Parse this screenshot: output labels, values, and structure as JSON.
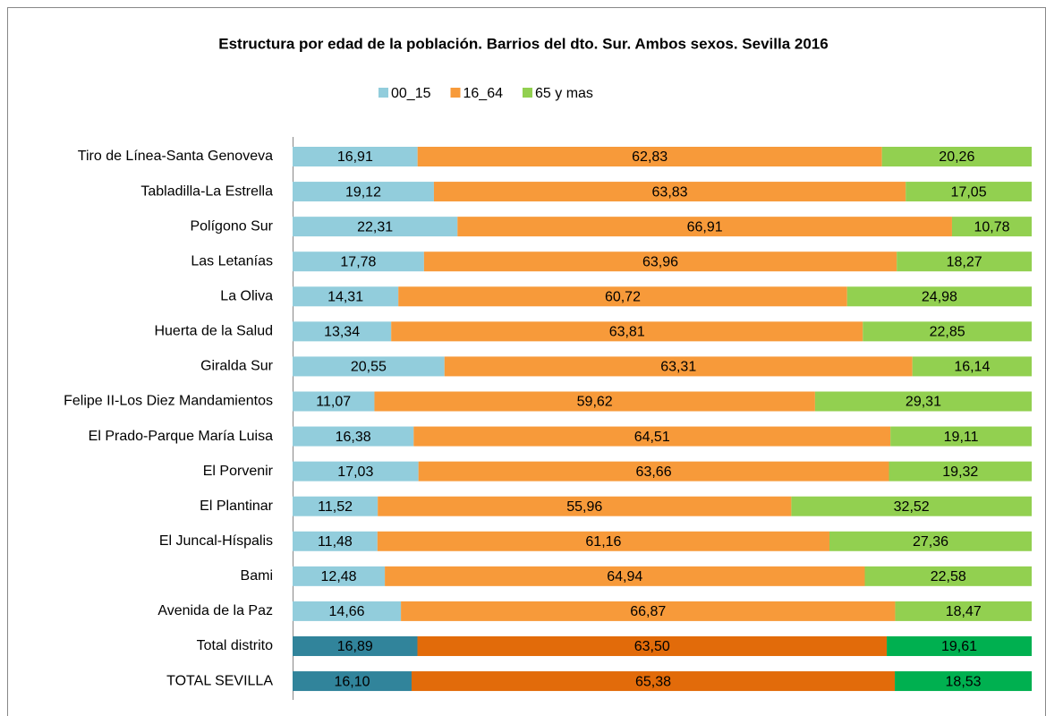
{
  "chart_data": {
    "type": "stacked_barh",
    "title": "Estructura por edad de la población. Barrios del dto. Sur. Ambos sexos. Sevilla 2016",
    "categories": [
      "Tiro de Línea-Santa Genoveva",
      "Tabladilla-La Estrella",
      "Polígono Sur",
      "Las Letanías",
      "La Oliva",
      "Huerta de la Salud",
      "Giralda Sur",
      "Felipe II-Los Diez Mandamientos",
      "El Prado-Parque María Luisa",
      "El Porvenir",
      "El Plantinar",
      "El Juncal-Híspalis",
      "Bami",
      "Avenida de la Paz",
      "Total distrito",
      "TOTAL SEVILLA"
    ],
    "series": [
      {
        "name": "00_15",
        "color": "#92cddc",
        "colors": [
          "#92cddc",
          "#92cddc",
          "#92cddc",
          "#92cddc",
          "#92cddc",
          "#92cddc",
          "#92cddc",
          "#92cddc",
          "#92cddc",
          "#92cddc",
          "#92cddc",
          "#92cddc",
          "#92cddc",
          "#92cddc",
          "#31849b",
          "#31849b"
        ],
        "values": [
          16.91,
          19.12,
          22.31,
          17.78,
          14.31,
          13.34,
          20.55,
          11.07,
          16.38,
          17.03,
          11.52,
          11.48,
          12.48,
          14.66,
          16.89,
          16.1
        ],
        "value_labels": [
          "16,91",
          "19,12",
          "22,31",
          "17,78",
          "14,31",
          "13,34",
          "20,55",
          "11,07",
          "16,38",
          "17,03",
          "11,52",
          "11,48",
          "12,48",
          "14,66",
          "16,89",
          "16,10"
        ]
      },
      {
        "name": "16_64",
        "color": "#f79a3a",
        "colors": [
          "#f79a3a",
          "#f79a3a",
          "#f79a3a",
          "#f79a3a",
          "#f79a3a",
          "#f79a3a",
          "#f79a3a",
          "#f79a3a",
          "#f79a3a",
          "#f79a3a",
          "#f79a3a",
          "#f79a3a",
          "#f79a3a",
          "#f79a3a",
          "#e26b0a",
          "#e26b0a"
        ],
        "values": [
          62.83,
          63.83,
          66.91,
          63.96,
          60.72,
          63.81,
          63.31,
          59.62,
          64.51,
          63.66,
          55.96,
          61.16,
          64.94,
          66.87,
          63.5,
          65.38
        ],
        "value_labels": [
          "62,83",
          "63,83",
          "66,91",
          "63,96",
          "60,72",
          "63,81",
          "63,31",
          "59,62",
          "64,51",
          "63,66",
          "55,96",
          "61,16",
          "64,94",
          "66,87",
          "63,50",
          "65,38"
        ]
      },
      {
        "name": "65 y mas",
        "color": "#92d050",
        "colors": [
          "#92d050",
          "#92d050",
          "#92d050",
          "#92d050",
          "#92d050",
          "#92d050",
          "#92d050",
          "#92d050",
          "#92d050",
          "#92d050",
          "#92d050",
          "#92d050",
          "#92d050",
          "#92d050",
          "#00b050",
          "#00b050"
        ],
        "values": [
          20.26,
          17.05,
          10.78,
          18.27,
          24.98,
          22.85,
          16.14,
          29.31,
          19.11,
          19.32,
          32.52,
          27.36,
          22.58,
          18.47,
          19.61,
          18.53
        ],
        "value_labels": [
          "20,26",
          "17,05",
          "10,78",
          "18,27",
          "24,98",
          "22,85",
          "16,14",
          "29,31",
          "19,11",
          "19,32",
          "32,52",
          "27,36",
          "22,58",
          "18,47",
          "19,61",
          "18,53"
        ]
      }
    ],
    "xlim": [
      0,
      100
    ],
    "legend": "top"
  }
}
